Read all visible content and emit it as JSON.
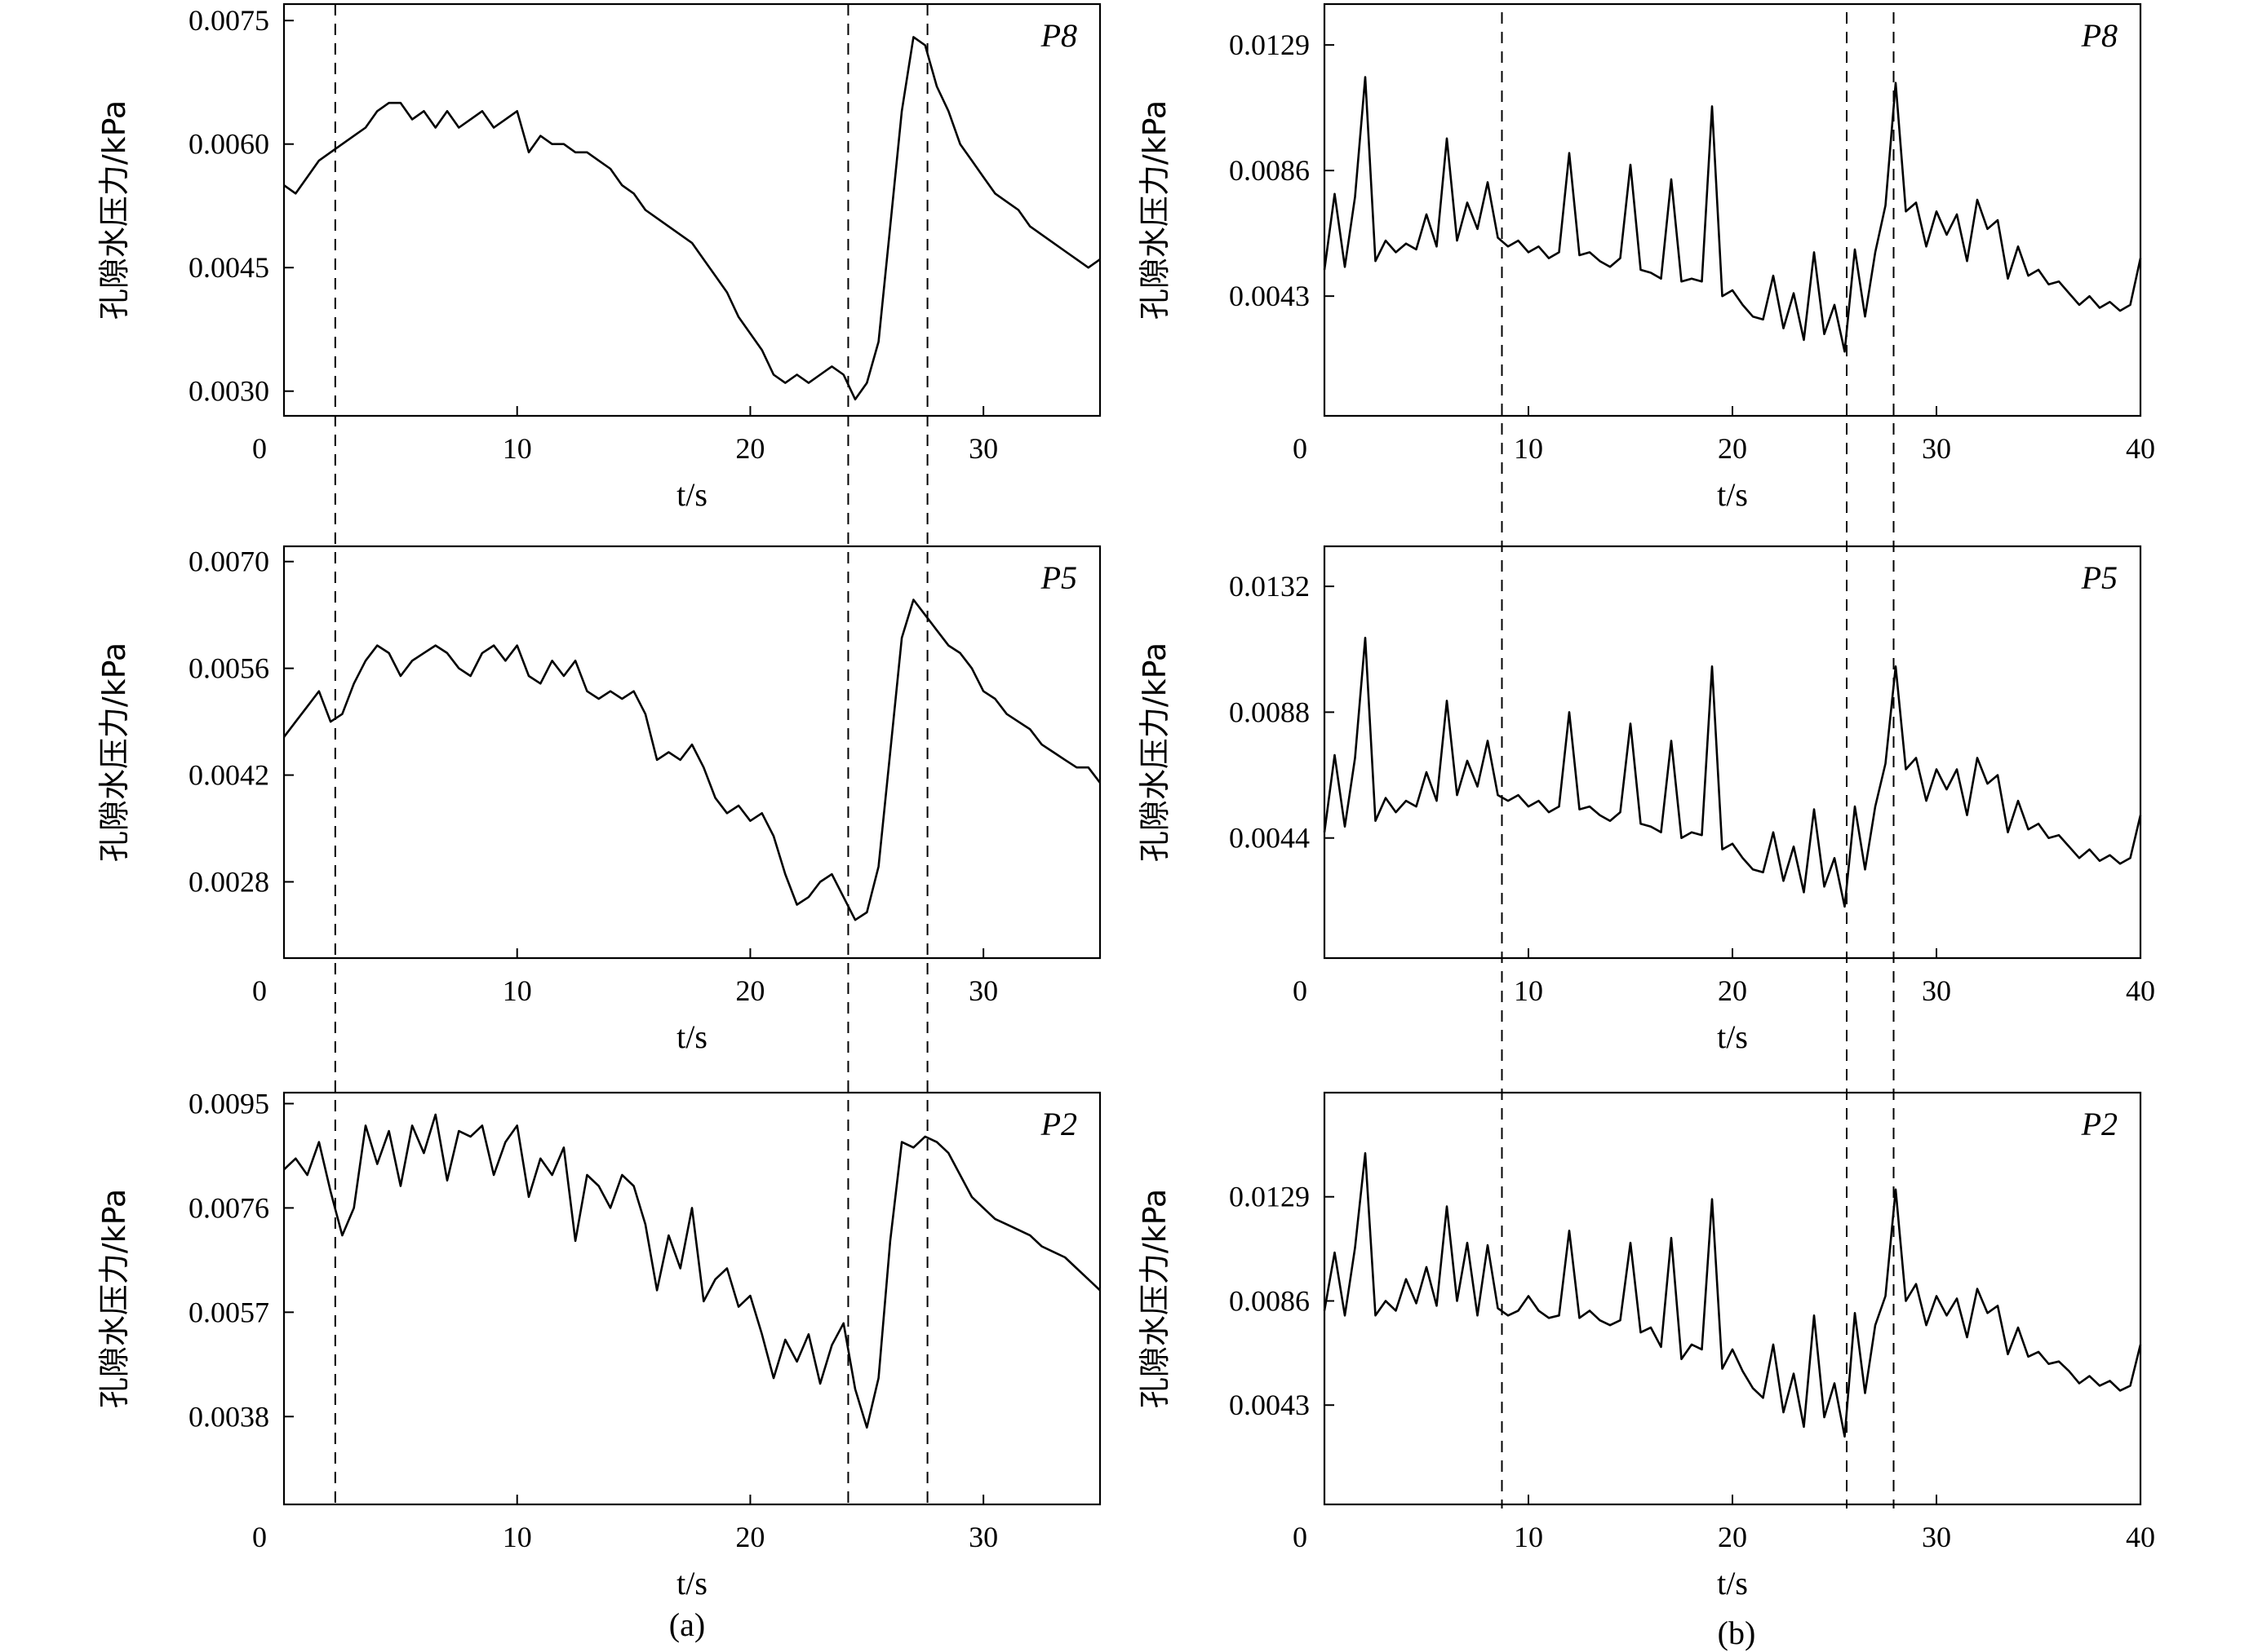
{
  "figure": {
    "caption_a": "(a)",
    "caption_b": "(b)"
  },
  "chart_data": [
    {
      "type": "line",
      "panel": "a-top",
      "label": "P8",
      "xlabel": "t/s",
      "ylabel": "孔隙水压力/kPa",
      "xlim": [
        0,
        35
      ],
      "ylim": [
        0.0027,
        0.0077
      ],
      "xticks": [
        0,
        10,
        20,
        30
      ],
      "yticks": [
        "0.0030",
        "0.0045",
        "0.0060",
        "0.0075"
      ],
      "event_lines": [
        2.2,
        24.2,
        27.6
      ],
      "x": [
        0,
        0.5,
        1,
        1.5,
        2,
        2.5,
        3,
        3.5,
        4,
        4.5,
        5,
        5.5,
        6,
        6.5,
        7,
        7.5,
        8,
        8.5,
        9,
        9.5,
        10,
        10.5,
        11,
        11.5,
        12,
        12.5,
        13,
        13.5,
        14,
        14.5,
        15,
        15.5,
        16,
        16.5,
        17,
        17.5,
        18,
        18.5,
        19,
        19.5,
        20,
        20.5,
        21,
        21.5,
        22,
        22.5,
        23,
        23.5,
        24,
        24.5,
        25,
        25.5,
        26,
        26.5,
        27,
        27.5,
        28,
        28.5,
        29,
        29.5,
        30,
        30.5,
        31,
        31.5,
        32,
        32.5,
        33,
        33.5,
        34,
        34.5,
        35
      ],
      "values": [
        0.0055,
        0.0054,
        0.0056,
        0.0058,
        0.0059,
        0.006,
        0.0061,
        0.0062,
        0.0064,
        0.0065,
        0.0065,
        0.0063,
        0.0064,
        0.0062,
        0.0064,
        0.0062,
        0.0063,
        0.0064,
        0.0062,
        0.0063,
        0.0064,
        0.0059,
        0.0061,
        0.006,
        0.006,
        0.0059,
        0.0059,
        0.0058,
        0.0057,
        0.0055,
        0.0054,
        0.0052,
        0.0051,
        0.005,
        0.0049,
        0.0048,
        0.0046,
        0.0044,
        0.0042,
        0.0039,
        0.0037,
        0.0035,
        0.0032,
        0.0031,
        0.0032,
        0.0031,
        0.0032,
        0.0033,
        0.0032,
        0.0029,
        0.0031,
        0.0036,
        0.005,
        0.0064,
        0.0073,
        0.0072,
        0.0067,
        0.0064,
        0.006,
        0.0058,
        0.0056,
        0.0054,
        0.0053,
        0.0052,
        0.005,
        0.0049,
        0.0048,
        0.0047,
        0.0046,
        0.0045,
        0.0046
      ]
    },
    {
      "type": "line",
      "panel": "a-middle",
      "label": "P5",
      "xlabel": "t/s",
      "ylabel": "孔隙水压力/kPa",
      "xlim": [
        0,
        35
      ],
      "ylim": [
        0.0018,
        0.0072
      ],
      "xticks": [
        0,
        10,
        20,
        30
      ],
      "yticks": [
        "0.0028",
        "0.0042",
        "0.0056",
        "0.0070"
      ],
      "event_lines": [
        2.2,
        24.2,
        27.6
      ],
      "x": [
        0,
        0.5,
        1,
        1.5,
        2,
        2.5,
        3,
        3.5,
        4,
        4.5,
        5,
        5.5,
        6,
        6.5,
        7,
        7.5,
        8,
        8.5,
        9,
        9.5,
        10,
        10.5,
        11,
        11.5,
        12,
        12.5,
        13,
        13.5,
        14,
        14.5,
        15,
        15.5,
        16,
        16.5,
        17,
        17.5,
        18,
        18.5,
        19,
        19.5,
        20,
        20.5,
        21,
        21.5,
        22,
        22.5,
        23,
        23.5,
        24,
        24.5,
        25,
        25.5,
        26,
        26.5,
        27,
        27.5,
        28,
        28.5,
        29,
        29.5,
        30,
        30.5,
        31,
        31.5,
        32,
        32.5,
        33,
        33.5,
        34,
        34.5,
        35
      ],
      "values": [
        0.0047,
        0.0049,
        0.0051,
        0.0053,
        0.0049,
        0.005,
        0.0054,
        0.0057,
        0.0059,
        0.0058,
        0.0055,
        0.0057,
        0.0058,
        0.0059,
        0.0058,
        0.0056,
        0.0055,
        0.0058,
        0.0059,
        0.0057,
        0.0059,
        0.0055,
        0.0054,
        0.0057,
        0.0055,
        0.0057,
        0.0053,
        0.0052,
        0.0053,
        0.0052,
        0.0053,
        0.005,
        0.0044,
        0.0045,
        0.0044,
        0.0046,
        0.0043,
        0.0039,
        0.0037,
        0.0038,
        0.0036,
        0.0037,
        0.0034,
        0.0029,
        0.0025,
        0.0026,
        0.0028,
        0.0029,
        0.0026,
        0.0023,
        0.0024,
        0.003,
        0.0045,
        0.006,
        0.0065,
        0.0063,
        0.0061,
        0.0059,
        0.0058,
        0.0056,
        0.0053,
        0.0052,
        0.005,
        0.0049,
        0.0048,
        0.0046,
        0.0045,
        0.0044,
        0.0043,
        0.0043,
        0.0041
      ]
    },
    {
      "type": "line",
      "panel": "a-bottom",
      "label": "P2",
      "xlabel": "t/s",
      "ylabel": "孔隙水压力/kPa",
      "xlim": [
        0,
        35
      ],
      "ylim": [
        0.0022,
        0.0097
      ],
      "xticks": [
        0,
        10,
        20,
        30
      ],
      "yticks": [
        "0.0038",
        "0.0057",
        "0.0076",
        "0.0095"
      ],
      "event_lines": [
        2.2,
        24.2,
        27.6
      ],
      "x": [
        0,
        0.5,
        1,
        1.5,
        2,
        2.5,
        3,
        3.5,
        4,
        4.5,
        5,
        5.5,
        6,
        6.5,
        7,
        7.5,
        8,
        8.5,
        9,
        9.5,
        10,
        10.5,
        11,
        11.5,
        12,
        12.5,
        13,
        13.5,
        14,
        14.5,
        15,
        15.5,
        16,
        16.5,
        17,
        17.5,
        18,
        18.5,
        19,
        19.5,
        20,
        20.5,
        21,
        21.5,
        22,
        22.5,
        23,
        23.5,
        24,
        24.5,
        25,
        25.5,
        26,
        26.5,
        27,
        27.5,
        28,
        28.5,
        29,
        29.5,
        30,
        30.5,
        31,
        31.5,
        32,
        32.5,
        33,
        33.5,
        34,
        34.5,
        35
      ],
      "values": [
        0.0083,
        0.0085,
        0.0082,
        0.0088,
        0.0079,
        0.0071,
        0.0076,
        0.0091,
        0.0084,
        0.009,
        0.008,
        0.0091,
        0.0086,
        0.0093,
        0.0081,
        0.009,
        0.0089,
        0.0091,
        0.0082,
        0.0088,
        0.0091,
        0.0078,
        0.0085,
        0.0082,
        0.0087,
        0.007,
        0.0082,
        0.008,
        0.0076,
        0.0082,
        0.008,
        0.0073,
        0.0061,
        0.0071,
        0.0065,
        0.0076,
        0.0059,
        0.0063,
        0.0065,
        0.0058,
        0.006,
        0.0053,
        0.0045,
        0.0052,
        0.0048,
        0.0053,
        0.0044,
        0.0051,
        0.0055,
        0.0043,
        0.0036,
        0.0045,
        0.007,
        0.0088,
        0.0087,
        0.0089,
        0.0088,
        0.0086,
        0.0082,
        0.0078,
        0.0076,
        0.0074,
        0.0073,
        0.0072,
        0.0071,
        0.0069,
        0.0068,
        0.0067,
        0.0065,
        0.0063,
        0.0061
      ]
    },
    {
      "type": "line",
      "panel": "b-top",
      "label": "P8",
      "xlabel": "t/s",
      "ylabel": "孔隙水压力/kPa",
      "xlim": [
        0,
        40
      ],
      "ylim": [
        0.0002,
        0.0143
      ],
      "xticks": [
        0,
        10,
        20,
        30,
        40
      ],
      "yticks": [
        "0.0043",
        "0.0086",
        "0.0129"
      ],
      "event_lines": [
        8.7,
        25.6,
        27.9
      ],
      "x": [
        0,
        0.5,
        1,
        1.5,
        2,
        2.5,
        3,
        3.5,
        4,
        4.5,
        5,
        5.5,
        6,
        6.5,
        7,
        7.5,
        8,
        8.5,
        9,
        9.5,
        10,
        10.5,
        11,
        11.5,
        12,
        12.5,
        13,
        13.5,
        14,
        14.5,
        15,
        15.5,
        16,
        16.5,
        17,
        17.5,
        18,
        18.5,
        19,
        19.5,
        20,
        20.5,
        21,
        21.5,
        22,
        22.5,
        23,
        23.5,
        24,
        24.5,
        25,
        25.5,
        26,
        26.5,
        27,
        27.5,
        28,
        28.5,
        29,
        29.5,
        30,
        30.5,
        31,
        31.5,
        32,
        32.5,
        33,
        33.5,
        34,
        34.5,
        35,
        35.5,
        36,
        36.5,
        37,
        37.5,
        38,
        38.5,
        39,
        39.5,
        40
      ],
      "values": [
        0.0052,
        0.0078,
        0.0053,
        0.0077,
        0.0118,
        0.0055,
        0.0062,
        0.0058,
        0.0061,
        0.0059,
        0.0071,
        0.006,
        0.0097,
        0.0062,
        0.0075,
        0.0066,
        0.0082,
        0.0063,
        0.006,
        0.0062,
        0.0058,
        0.006,
        0.0056,
        0.0058,
        0.0092,
        0.0057,
        0.0058,
        0.0055,
        0.0053,
        0.0056,
        0.0088,
        0.0052,
        0.0051,
        0.0049,
        0.0083,
        0.0048,
        0.0049,
        0.0048,
        0.0108,
        0.0043,
        0.0045,
        0.004,
        0.0036,
        0.0035,
        0.005,
        0.0032,
        0.0044,
        0.0028,
        0.0058,
        0.003,
        0.004,
        0.0024,
        0.0059,
        0.0036,
        0.0058,
        0.0074,
        0.0116,
        0.0072,
        0.0075,
        0.006,
        0.0072,
        0.0064,
        0.0071,
        0.0055,
        0.0076,
        0.0066,
        0.0069,
        0.0049,
        0.006,
        0.005,
        0.0052,
        0.0047,
        0.0048,
        0.0044,
        0.004,
        0.0043,
        0.0039,
        0.0041,
        0.0038,
        0.004,
        0.0056
      ]
    },
    {
      "type": "line",
      "panel": "b-middle",
      "label": "P5",
      "xlabel": "t/s",
      "ylabel": "孔隙水压力/kPa",
      "xlim": [
        0,
        40
      ],
      "ylim": [
        0.0002,
        0.0146
      ],
      "xticks": [
        0,
        10,
        20,
        30,
        40
      ],
      "yticks": [
        "0.0044",
        "0.0088",
        "0.0132"
      ],
      "event_lines": [
        8.7,
        25.6,
        27.9
      ],
      "x": [
        0,
        0.5,
        1,
        1.5,
        2,
        2.5,
        3,
        3.5,
        4,
        4.5,
        5,
        5.5,
        6,
        6.5,
        7,
        7.5,
        8,
        8.5,
        9,
        9.5,
        10,
        10.5,
        11,
        11.5,
        12,
        12.5,
        13,
        13.5,
        14,
        14.5,
        15,
        15.5,
        16,
        16.5,
        17,
        17.5,
        18,
        18.5,
        19,
        19.5,
        20,
        20.5,
        21,
        21.5,
        22,
        22.5,
        23,
        23.5,
        24,
        24.5,
        25,
        25.5,
        26,
        26.5,
        27,
        27.5,
        28,
        28.5,
        29,
        29.5,
        30,
        30.5,
        31,
        31.5,
        32,
        32.5,
        33,
        33.5,
        34,
        34.5,
        35,
        35.5,
        36,
        36.5,
        37,
        37.5,
        38,
        38.5,
        39,
        39.5,
        40
      ],
      "values": [
        0.0046,
        0.0073,
        0.0048,
        0.0072,
        0.0114,
        0.005,
        0.0058,
        0.0053,
        0.0057,
        0.0055,
        0.0067,
        0.0057,
        0.0092,
        0.0059,
        0.0071,
        0.0062,
        0.0078,
        0.0059,
        0.0057,
        0.0059,
        0.0055,
        0.0057,
        0.0053,
        0.0055,
        0.0088,
        0.0054,
        0.0055,
        0.0052,
        0.005,
        0.0053,
        0.0084,
        0.0049,
        0.0048,
        0.0046,
        0.0078,
        0.0044,
        0.0046,
        0.0045,
        0.0104,
        0.004,
        0.0042,
        0.0037,
        0.0033,
        0.0032,
        0.0046,
        0.0029,
        0.0041,
        0.0025,
        0.0054,
        0.0027,
        0.0037,
        0.002,
        0.0055,
        0.0033,
        0.0055,
        0.007,
        0.0104,
        0.0068,
        0.0072,
        0.0057,
        0.0068,
        0.0061,
        0.0068,
        0.0052,
        0.0072,
        0.0063,
        0.0066,
        0.0046,
        0.0057,
        0.0047,
        0.0049,
        0.0044,
        0.0045,
        0.0041,
        0.0037,
        0.004,
        0.0036,
        0.0038,
        0.0035,
        0.0037,
        0.0052
      ]
    },
    {
      "type": "line",
      "panel": "b-bottom",
      "label": "P2",
      "xlabel": "t/s",
      "ylabel": "孔隙水压力/kPa",
      "xlim": [
        0,
        40
      ],
      "ylim": [
        0.0002,
        0.0172
      ],
      "xticks": [
        0,
        10,
        20,
        30,
        40
      ],
      "yticks": [
        "0.0043",
        "0.0086",
        "0.0129"
      ],
      "event_lines": [
        8.7,
        25.6,
        27.9
      ],
      "x": [
        0,
        0.5,
        1,
        1.5,
        2,
        2.5,
        3,
        3.5,
        4,
        4.5,
        5,
        5.5,
        6,
        6.5,
        7,
        7.5,
        8,
        8.5,
        9,
        9.5,
        10,
        10.5,
        11,
        11.5,
        12,
        12.5,
        13,
        13.5,
        14,
        14.5,
        15,
        15.5,
        16,
        16.5,
        17,
        17.5,
        18,
        18.5,
        19,
        19.5,
        20,
        20.5,
        21,
        21.5,
        22,
        22.5,
        23,
        23.5,
        24,
        24.5,
        25,
        25.5,
        26,
        26.5,
        27,
        27.5,
        28,
        28.5,
        29,
        29.5,
        30,
        30.5,
        31,
        31.5,
        32,
        32.5,
        33,
        33.5,
        34,
        34.5,
        35,
        35.5,
        36,
        36.5,
        37,
        37.5,
        38,
        38.5,
        39,
        39.5,
        40
      ],
      "values": [
        0.0082,
        0.0106,
        0.008,
        0.0108,
        0.0147,
        0.008,
        0.0086,
        0.0082,
        0.0095,
        0.0085,
        0.01,
        0.0084,
        0.0125,
        0.0086,
        0.011,
        0.008,
        0.0109,
        0.0083,
        0.008,
        0.0082,
        0.0088,
        0.0082,
        0.0079,
        0.008,
        0.0115,
        0.0079,
        0.0082,
        0.0078,
        0.0076,
        0.0078,
        0.011,
        0.0073,
        0.0075,
        0.0067,
        0.0112,
        0.0062,
        0.0068,
        0.0066,
        0.0128,
        0.0058,
        0.0066,
        0.0057,
        0.005,
        0.0046,
        0.0068,
        0.004,
        0.0056,
        0.0034,
        0.008,
        0.0038,
        0.0052,
        0.003,
        0.0081,
        0.0048,
        0.0076,
        0.0088,
        0.0132,
        0.0086,
        0.0093,
        0.0076,
        0.0088,
        0.008,
        0.0087,
        0.0071,
        0.0091,
        0.0081,
        0.0084,
        0.0064,
        0.0075,
        0.0063,
        0.0065,
        0.006,
        0.0061,
        0.0057,
        0.0052,
        0.0055,
        0.0051,
        0.0053,
        0.0049,
        0.0051,
        0.0068
      ]
    }
  ]
}
